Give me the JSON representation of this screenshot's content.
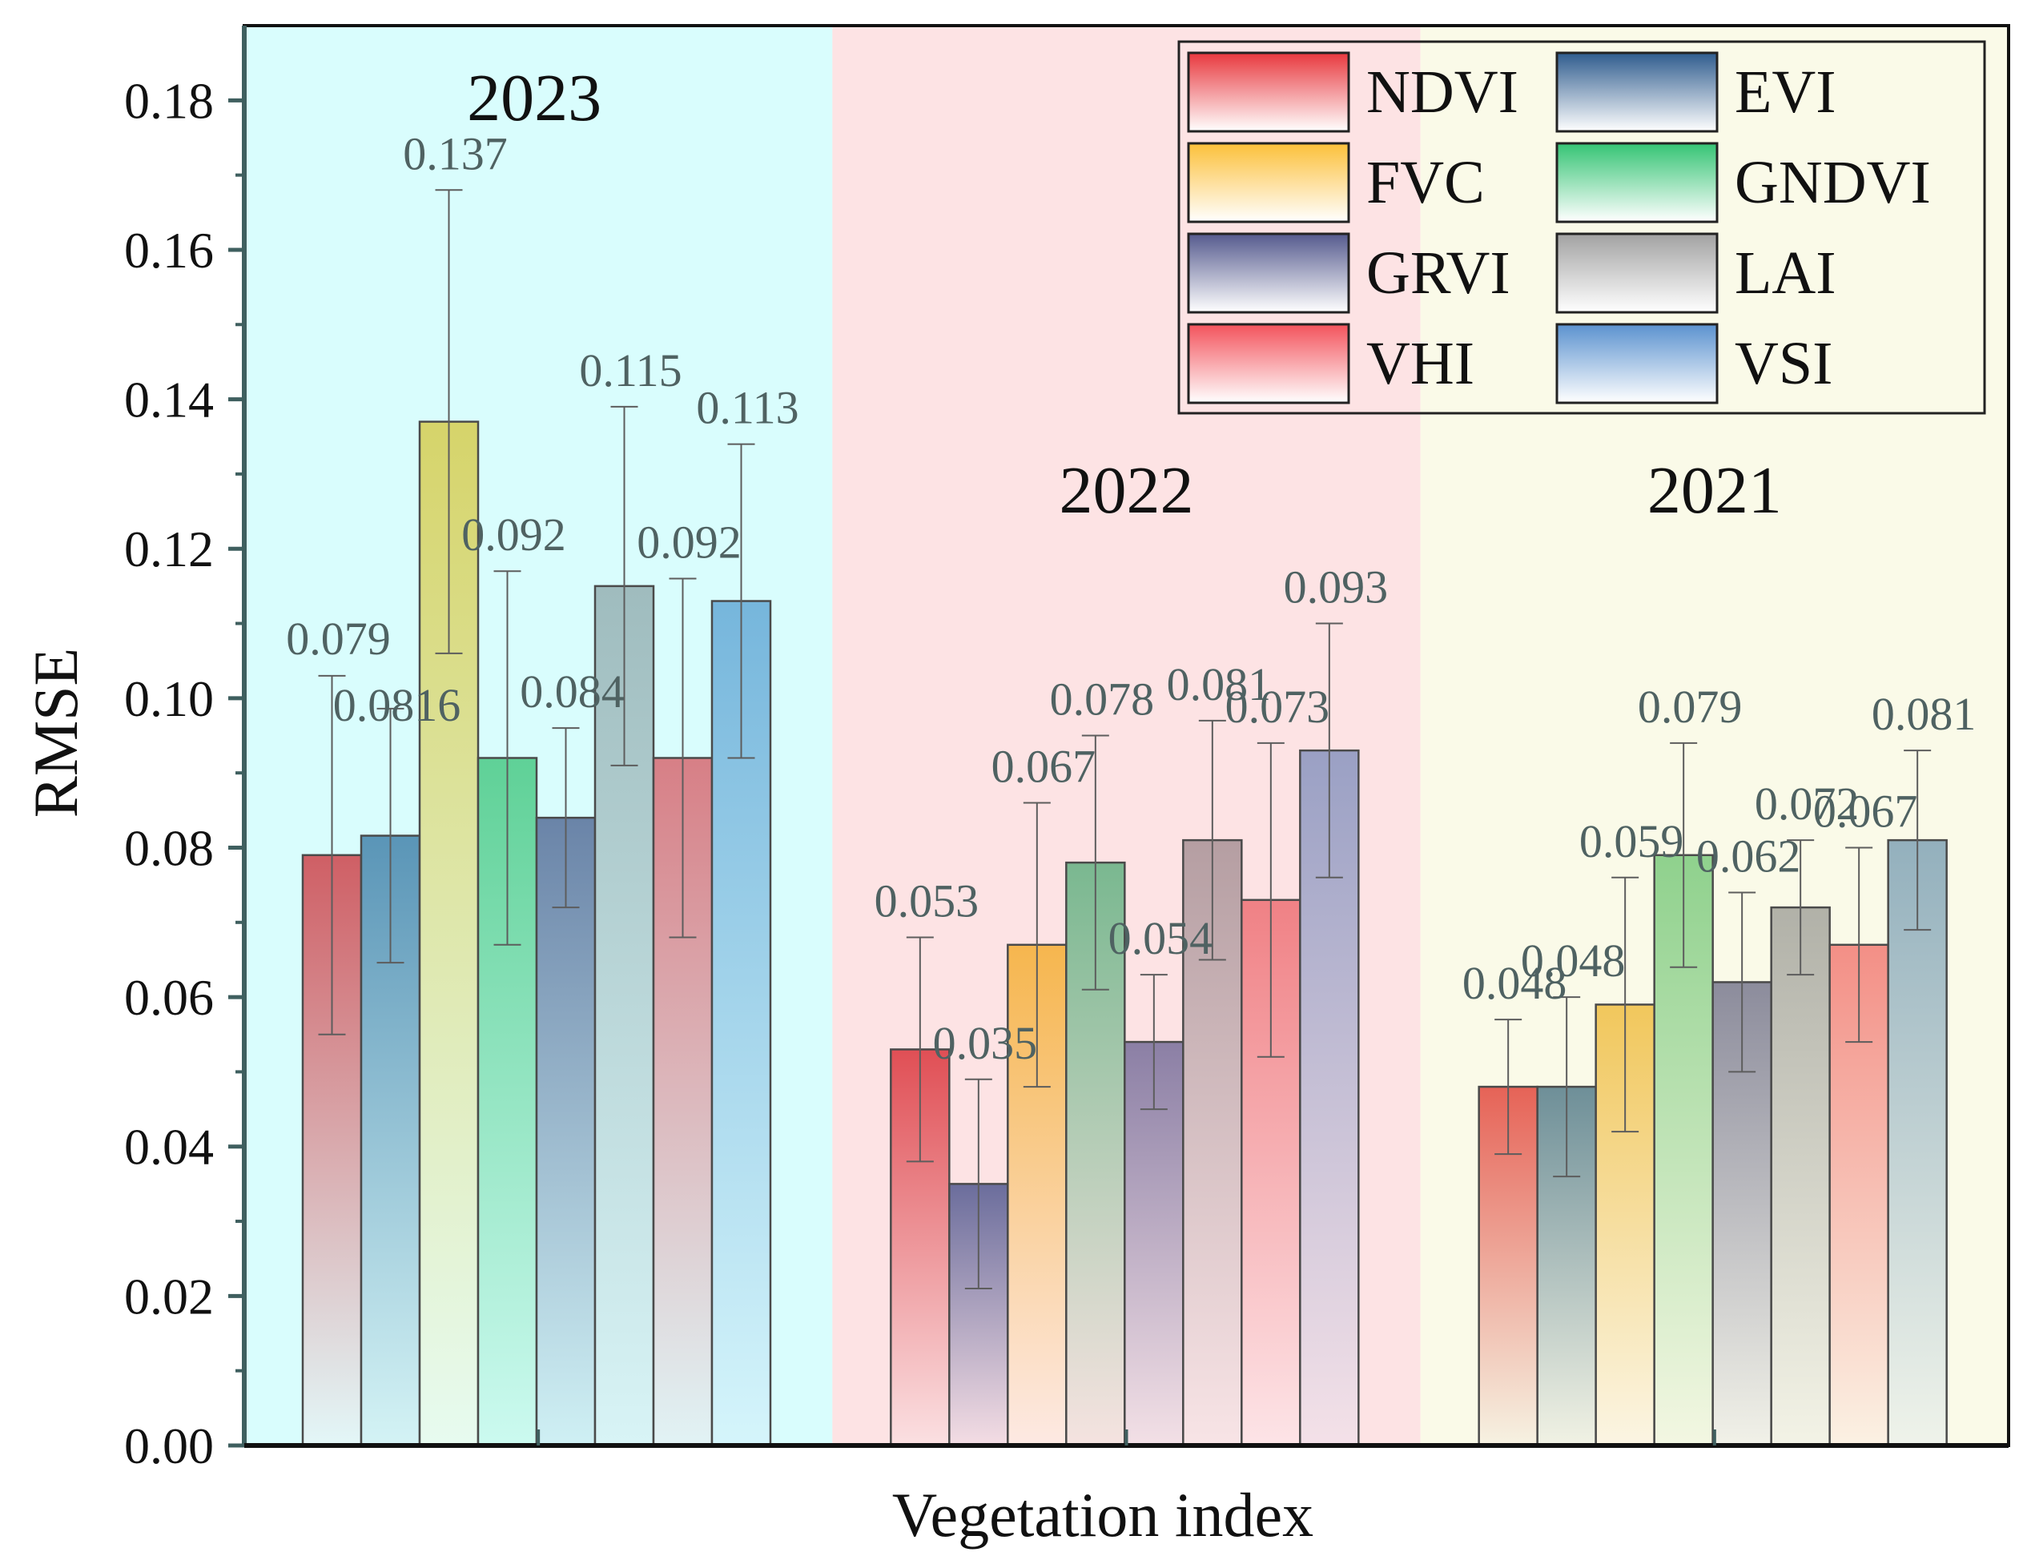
{
  "chart_data": {
    "type": "bar",
    "title": "",
    "xlabel": "Vegetation index",
    "ylabel": "RMSE",
    "ylim": [
      0,
      0.19
    ],
    "yticks": [
      "0.00",
      "0.02",
      "0.04",
      "0.06",
      "0.08",
      "0.10",
      "0.12",
      "0.14",
      "0.16",
      "0.18"
    ],
    "ytick_values": [
      0,
      0.02,
      0.04,
      0.06,
      0.08,
      0.1,
      0.12,
      0.14,
      0.16,
      0.18
    ],
    "legend_position": "top-right",
    "grid": false,
    "series_names": [
      "NDVI",
      "EVI",
      "FVC",
      "GNDVI",
      "GRVI",
      "LAI",
      "VHI",
      "VSI"
    ],
    "groups": [
      {
        "label": "2023",
        "background": "#d9fdfd",
        "values": [
          0.079,
          0.0816,
          0.137,
          0.092,
          0.084,
          0.115,
          0.092,
          0.113
        ],
        "value_labels": [
          "0.079",
          "0.0816",
          "0.137",
          "0.092",
          "0.084",
          "0.115",
          "0.092",
          "0.113"
        ],
        "errors": [
          0.024,
          0.017,
          0.031,
          0.025,
          0.012,
          0.024,
          0.024,
          0.021
        ],
        "colors": [
          "#cf5f65",
          "#5a95b7",
          "#d6d46a",
          "#5fd197",
          "#6a84a8",
          "#9fbcbe",
          "#d77f86",
          "#76b6dc"
        ],
        "fade": [
          "#e3f7f8",
          "#d4f3f5",
          "#e7fbf0",
          "#ccfaf0",
          "#cff0f4",
          "#d8f4f6",
          "#e1f3f5",
          "#d5f5fb"
        ]
      },
      {
        "label": "2022",
        "background": "#fde3e4",
        "values": [
          0.053,
          0.035,
          0.067,
          0.078,
          0.054,
          0.081,
          0.073,
          0.093
        ],
        "value_labels": [
          "0.053",
          "0.035",
          "0.067",
          "0.078",
          "0.054",
          "0.081",
          "0.073",
          "0.093"
        ],
        "errors": [
          0.015,
          0.014,
          0.019,
          0.017,
          0.009,
          0.016,
          0.021,
          0.017
        ],
        "colors": [
          "#e04f55",
          "#6b6d9c",
          "#f6b64e",
          "#7ab890",
          "#8b7fa5",
          "#b59ea2",
          "#f08185",
          "#9aa0c4"
        ],
        "fade": [
          "#fbe0e2",
          "#f4dde4",
          "#fde9e3",
          "#f5e3e0",
          "#f3e0e6",
          "#f8e4e6",
          "#fde4e7",
          "#f4e1e8"
        ]
      },
      {
        "label": "2021",
        "background": "#fafae8",
        "values": [
          0.048,
          0.048,
          0.059,
          0.079,
          0.062,
          0.072,
          0.067,
          0.081
        ],
        "value_labels": [
          "0.048",
          "0.048",
          "0.059",
          "0.079",
          "0.062",
          "0.072",
          "0.067",
          "0.081"
        ],
        "errors": [
          0.009,
          0.012,
          0.017,
          0.015,
          0.012,
          0.009,
          0.013,
          0.012
        ],
        "colors": [
          "#e66357",
          "#6e8f98",
          "#f1c75c",
          "#8fd18d",
          "#8c8c9c",
          "#b1b1a8",
          "#f38f86",
          "#93b0bd"
        ],
        "fade": [
          "#f6f2e2",
          "#f1f2e4",
          "#fbf5e3",
          "#f3f7e2",
          "#f1f1e8",
          "#f3f3e6",
          "#fbf1e3",
          "#eff3ea"
        ]
      }
    ],
    "legend": [
      {
        "label": "NDVI",
        "color": "#e8383e"
      },
      {
        "label": "EVI",
        "color": "#2f5c8e"
      },
      {
        "label": "FVC",
        "color": "#fcc03a"
      },
      {
        "label": "GNDVI",
        "color": "#35c474"
      },
      {
        "label": "GRVI",
        "color": "#555a8e"
      },
      {
        "label": "LAI",
        "color": "#a2a2a2"
      },
      {
        "label": "VHI",
        "color": "#f3535c"
      },
      {
        "label": "VSI",
        "color": "#5b92cf"
      }
    ]
  }
}
